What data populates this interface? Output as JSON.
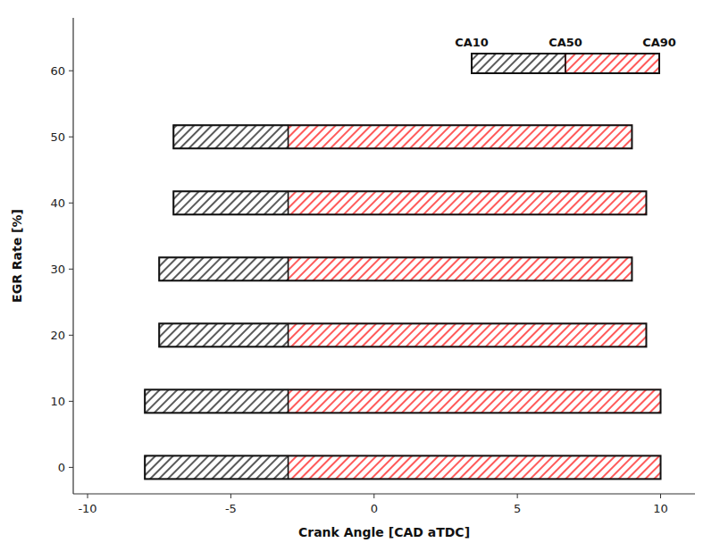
{
  "chart_data": {
    "type": "range_bar",
    "orientation": "horizontal",
    "x_label": "Crank Angle [CAD aTDC]",
    "y_label": "EGR Rate [%]",
    "y": [
      0,
      10,
      20,
      30,
      40,
      50
    ],
    "series": [
      {
        "name": "CA10",
        "color": "black",
        "values": [
          -8.0,
          -8.0,
          -7.5,
          -7.5,
          -7.0,
          -7.0
        ]
      },
      {
        "name": "CA50",
        "color": "red",
        "values": [
          -3.0,
          -3.0,
          -3.0,
          -3.0,
          -3.0,
          -3.0
        ]
      },
      {
        "name": "CA90",
        "values": [
          10.0,
          10.0,
          9.5,
          9.0,
          9.5,
          9.0
        ]
      }
    ],
    "xlim": [
      -10.5,
      11.2
    ],
    "xticks": [
      -10,
      -5,
      0,
      5,
      10
    ],
    "ylim": [
      -4,
      68
    ],
    "yticks": [
      0,
      10,
      20,
      30,
      40,
      50,
      60
    ],
    "grid": false,
    "legend": "upper right"
  }
}
